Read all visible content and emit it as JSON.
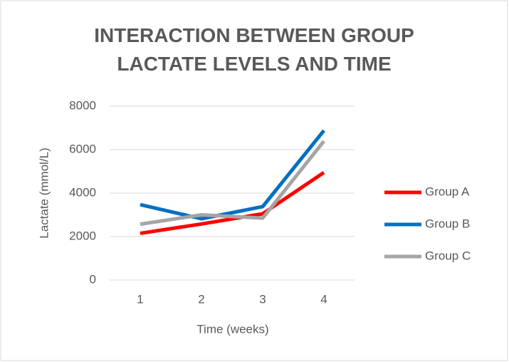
{
  "chart_data": {
    "type": "line",
    "title": "INTERACTION BETWEEN GROUP LACTATE LEVELS AND TIME",
    "x_label": "Time (weeks)",
    "y_label": "Lactate (mmol/L)",
    "categories": [
      "1",
      "2",
      "3",
      "4"
    ],
    "series": [
      {
        "name": "Group A",
        "color": "#ff0000",
        "values": [
          2150,
          2580,
          3050,
          4950
        ]
      },
      {
        "name": "Group B",
        "color": "#0070c0",
        "values": [
          3470,
          2820,
          3380,
          6880
        ]
      },
      {
        "name": "Group C",
        "color": "#a5a5a5",
        "values": [
          2570,
          3000,
          2850,
          6390
        ]
      }
    ],
    "ylim": [
      0,
      8000
    ],
    "yticks": [
      0,
      2000,
      4000,
      6000,
      8000
    ],
    "grid": true,
    "legend": "right"
  }
}
